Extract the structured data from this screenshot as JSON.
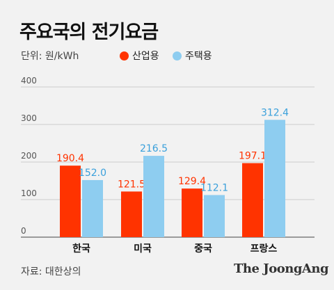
{
  "title": "주요국의 전기요금",
  "unit_label": "단위: 원/kWh",
  "source_label": "자료: 대한상의",
  "brand": "The JoongAng",
  "colors": {
    "industrial": "#ff3300",
    "residential": "#8ecdf0",
    "grid": "#cccccc",
    "axis": "#666666"
  },
  "chart_data": {
    "type": "bar",
    "title": "주요국의 전기요금",
    "ylabel": "단위: 원/kWh",
    "xlabel": "",
    "categories": [
      "한국",
      "미국",
      "중국",
      "프랑스"
    ],
    "series": [
      {
        "name": "산업용",
        "values": [
          190.4,
          121.5,
          129.4,
          197.1
        ],
        "labels": [
          "190.4",
          "121.5",
          "129.4",
          "197.1"
        ]
      },
      {
        "name": "주택용",
        "values": [
          152.0,
          216.5,
          112.1,
          312.4
        ],
        "labels": [
          "152.0",
          "216.5",
          "112.1",
          "312.4"
        ]
      }
    ],
    "ylim": [
      0,
      400
    ],
    "yticks": [
      0,
      100,
      200,
      300,
      400
    ],
    "grid": true,
    "legend": "top"
  }
}
